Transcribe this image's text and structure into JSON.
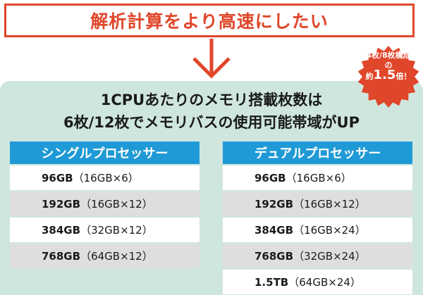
{
  "header": {
    "title": "解析計算をより高速にしたい"
  },
  "main": {
    "title_line1": "1CPUあたりのメモリ搭載枚数は",
    "title_line2": "6枚/12枚でメモリバスの使用可能帯域がUP"
  },
  "badge": {
    "line1": "4枚/8枚構成",
    "line2": "の",
    "line3_prefix": "約",
    "line3_value": "1.5",
    "line3_suffix": "倍！"
  },
  "colors": {
    "accent_red": "#e0462a",
    "header_blue": "#1f9ad6",
    "panel_bg": "#cfe6df",
    "row_gray": "#dedede"
  },
  "tables": [
    {
      "heading": "シングルプロセッサー",
      "rows": [
        {
          "capacity": "96GB",
          "config": "（16GB×6）"
        },
        {
          "capacity": "192GB",
          "config": "（16GB×12）"
        },
        {
          "capacity": "384GB",
          "config": "（32GB×12）"
        },
        {
          "capacity": "768GB",
          "config": "（64GB×12）"
        }
      ]
    },
    {
      "heading": "デュアルプロセッサー",
      "rows": [
        {
          "capacity": "96GB",
          "config": "（16GB×6）"
        },
        {
          "capacity": "192GB",
          "config": "（16GB×12）"
        },
        {
          "capacity": "384GB",
          "config": "（16GB×24）"
        },
        {
          "capacity": "768GB",
          "config": "（32GB×24）"
        },
        {
          "capacity": "1.5TB",
          "config": "（64GB×24）"
        }
      ]
    }
  ]
}
